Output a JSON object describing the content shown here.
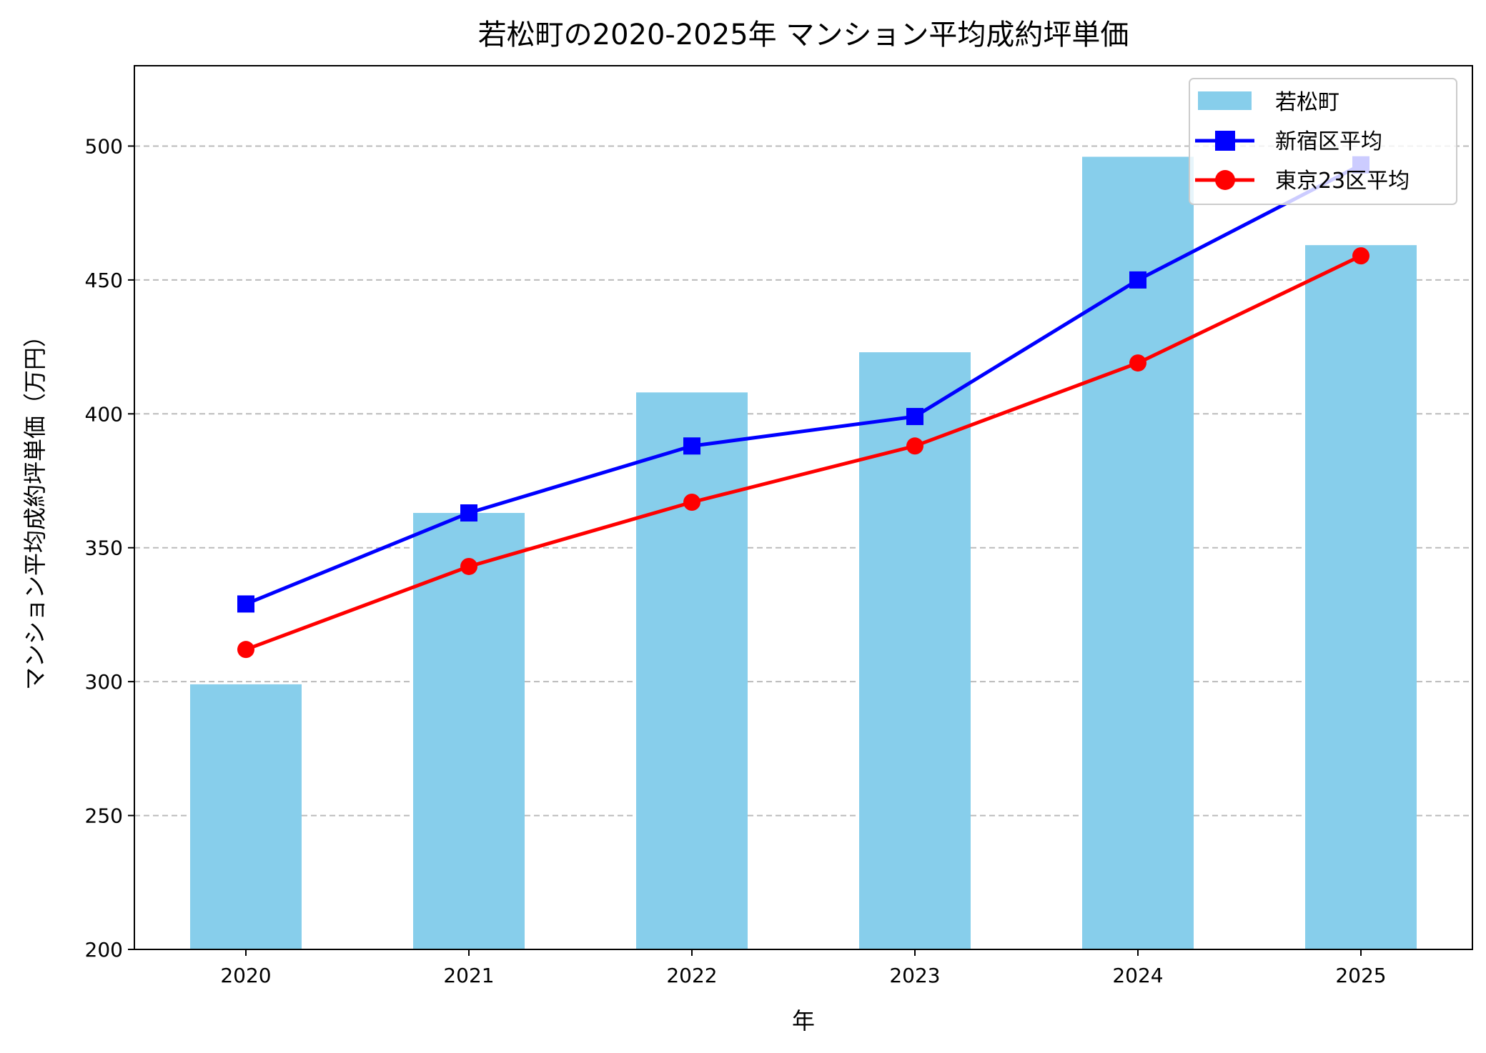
{
  "chart_data": {
    "type": "bar",
    "title": "若松町の2020-2025年 マンション平均成約坪単価",
    "xlabel": "年",
    "ylabel": "マンション平均成約坪単価（万円）",
    "categories": [
      "2020",
      "2021",
      "2022",
      "2023",
      "2024",
      "2025"
    ],
    "ylim": [
      200,
      530
    ],
    "yticks": [
      200,
      250,
      300,
      350,
      400,
      450,
      500
    ],
    "grid": "y-dashed",
    "legend_placement": "upper right",
    "series": [
      {
        "name": "若松町",
        "kind": "bar",
        "color": "#87CEEB",
        "values": [
          299,
          363,
          408,
          423,
          496,
          463
        ]
      },
      {
        "name": "新宿区平均",
        "kind": "line",
        "marker": "square",
        "color": "#0000FF",
        "values": [
          329,
          363,
          388,
          399,
          450,
          493
        ]
      },
      {
        "name": "東京23区平均",
        "kind": "line",
        "marker": "circle",
        "color": "#FF0000",
        "values": [
          312,
          343,
          367,
          388,
          419,
          459
        ]
      }
    ]
  }
}
